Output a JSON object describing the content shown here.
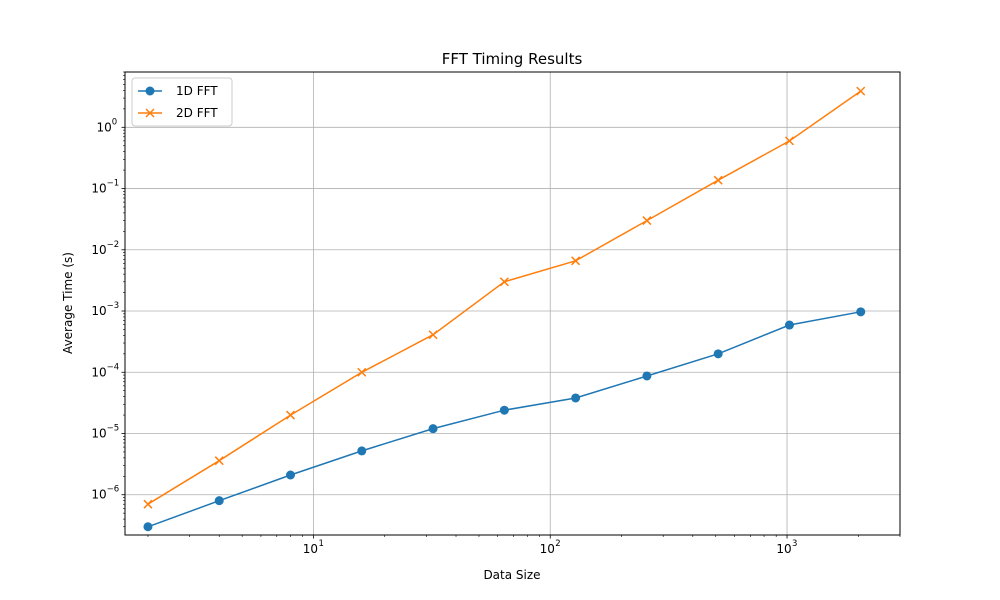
{
  "chart_data": {
    "type": "line",
    "title": "FFT Timing Results",
    "xlabel": "Data Size",
    "ylabel": "Average Time (s)",
    "xscale": "log",
    "yscale": "log",
    "xlim": [
      1.6,
      3000
    ],
    "ylim": [
      2.2e-07,
      8.0
    ],
    "grid": true,
    "legend_position": "top-left",
    "x": [
      2,
      4,
      8,
      16,
      32,
      64,
      128,
      256,
      512,
      1024,
      2048
    ],
    "x_ticks": [
      {
        "value": 10,
        "base": "10",
        "exp": "1"
      },
      {
        "value": 100,
        "base": "10",
        "exp": "2"
      },
      {
        "value": 1000,
        "base": "10",
        "exp": "3"
      }
    ],
    "y_ticks": [
      {
        "value": 1e-06,
        "base": "10",
        "exp": "−6"
      },
      {
        "value": 1e-05,
        "base": "10",
        "exp": "−5"
      },
      {
        "value": 0.0001,
        "base": "10",
        "exp": "−4"
      },
      {
        "value": 0.001,
        "base": "10",
        "exp": "−3"
      },
      {
        "value": 0.01,
        "base": "10",
        "exp": "−2"
      },
      {
        "value": 0.1,
        "base": "10",
        "exp": "−1"
      },
      {
        "value": 1,
        "base": "10",
        "exp": "0"
      }
    ],
    "series": [
      {
        "name": "1D FFT",
        "color": "#1f77b4",
        "marker": "circle",
        "values": [
          3e-07,
          8e-07,
          2.1e-06,
          5.2e-06,
          1.2e-05,
          2.4e-05,
          3.8e-05,
          8.7e-05,
          0.0002,
          0.00059,
          0.00097
        ]
      },
      {
        "name": "2D FFT",
        "color": "#ff7f0e",
        "marker": "x",
        "values": [
          7e-07,
          3.6e-06,
          2e-05,
          0.0001,
          0.00041,
          0.003,
          0.0066,
          0.03,
          0.137,
          0.6,
          3.9
        ]
      }
    ]
  }
}
